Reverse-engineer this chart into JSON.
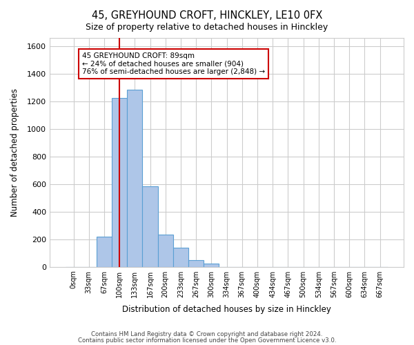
{
  "title_line1": "45, GREYHOUND CROFT, HINCKLEY, LE10 0FX",
  "title_line2": "Size of property relative to detached houses in Hinckley",
  "xlabel": "Distribution of detached houses by size in Hinckley",
  "ylabel": "Number of detached properties",
  "bar_labels": [
    "0sqm",
    "33sqm",
    "67sqm",
    "100sqm",
    "133sqm",
    "167sqm",
    "200sqm",
    "233sqm",
    "267sqm",
    "300sqm",
    "334sqm",
    "367sqm",
    "400sqm",
    "434sqm",
    "467sqm",
    "500sqm",
    "534sqm",
    "567sqm",
    "600sqm",
    "634sqm",
    "667sqm"
  ],
  "bar_values": [
    0,
    0,
    220,
    1225,
    1285,
    585,
    235,
    140,
    50,
    25,
    0,
    0,
    0,
    0,
    0,
    0,
    0,
    0,
    0,
    0,
    0
  ],
  "bar_color": "#aec6e8",
  "bar_edge_color": "#5a9fd4",
  "vline_x_index": 3,
  "vline_color": "#cc0000",
  "ylim": [
    0,
    1660
  ],
  "yticks": [
    0,
    200,
    400,
    600,
    800,
    1000,
    1200,
    1400,
    1600
  ],
  "annotation_text_line1": "45 GREYHOUND CROFT: 89sqm",
  "annotation_text_line2": "← 24% of detached houses are smaller (904)",
  "annotation_text_line3": "76% of semi-detached houses are larger (2,848) →",
  "footer_line1": "Contains HM Land Registry data © Crown copyright and database right 2024.",
  "footer_line2": "Contains public sector information licensed under the Open Government Licence v3.0.",
  "background_color": "#ffffff",
  "grid_color": "#cccccc"
}
